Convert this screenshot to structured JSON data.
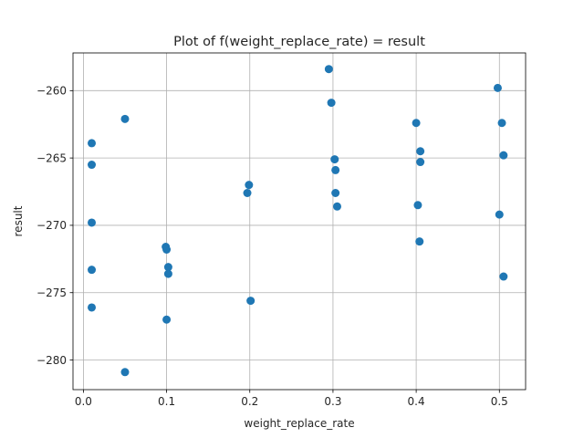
{
  "chart_data": {
    "type": "scatter",
    "title": "Plot of f(weight_replace_rate) = result",
    "xlabel": "weight_replace_rate",
    "ylabel": "result",
    "xlim": [
      -0.0125,
      0.5315
    ],
    "ylim": [
      -282.2,
      -257.2
    ],
    "xticks": [
      0.0,
      0.1,
      0.2,
      0.3,
      0.4,
      0.5
    ],
    "xtick_labels": [
      "0.0",
      "0.1",
      "0.2",
      "0.3",
      "0.4",
      "0.5"
    ],
    "yticks": [
      -280,
      -275,
      -270,
      -265,
      -260
    ],
    "ytick_labels": [
      "−280",
      "−275",
      "−270",
      "−265",
      "−260"
    ],
    "grid": true,
    "marker_color": "#1f77b4",
    "points": [
      {
        "x": 0.01,
        "y": -263.9
      },
      {
        "x": 0.01,
        "y": -265.5
      },
      {
        "x": 0.01,
        "y": -269.8
      },
      {
        "x": 0.01,
        "y": -273.3
      },
      {
        "x": 0.01,
        "y": -276.1
      },
      {
        "x": 0.05,
        "y": -262.1
      },
      {
        "x": 0.05,
        "y": -280.9
      },
      {
        "x": 0.099,
        "y": -271.6
      },
      {
        "x": 0.1,
        "y": -271.8
      },
      {
        "x": 0.102,
        "y": -273.1
      },
      {
        "x": 0.102,
        "y": -273.6
      },
      {
        "x": 0.1,
        "y": -277.0
      },
      {
        "x": 0.199,
        "y": -267.0
      },
      {
        "x": 0.197,
        "y": -267.6
      },
      {
        "x": 0.201,
        "y": -275.6
      },
      {
        "x": 0.295,
        "y": -258.4
      },
      {
        "x": 0.298,
        "y": -260.9
      },
      {
        "x": 0.302,
        "y": -265.1
      },
      {
        "x": 0.303,
        "y": -265.9
      },
      {
        "x": 0.303,
        "y": -267.6
      },
      {
        "x": 0.305,
        "y": -268.6
      },
      {
        "x": 0.4,
        "y": -262.4
      },
      {
        "x": 0.405,
        "y": -264.5
      },
      {
        "x": 0.405,
        "y": -265.3
      },
      {
        "x": 0.402,
        "y": -268.5
      },
      {
        "x": 0.404,
        "y": -271.2
      },
      {
        "x": 0.498,
        "y": -259.8
      },
      {
        "x": 0.503,
        "y": -262.4
      },
      {
        "x": 0.505,
        "y": -264.8
      },
      {
        "x": 0.5,
        "y": -269.2
      },
      {
        "x": 0.505,
        "y": -273.8
      }
    ]
  }
}
